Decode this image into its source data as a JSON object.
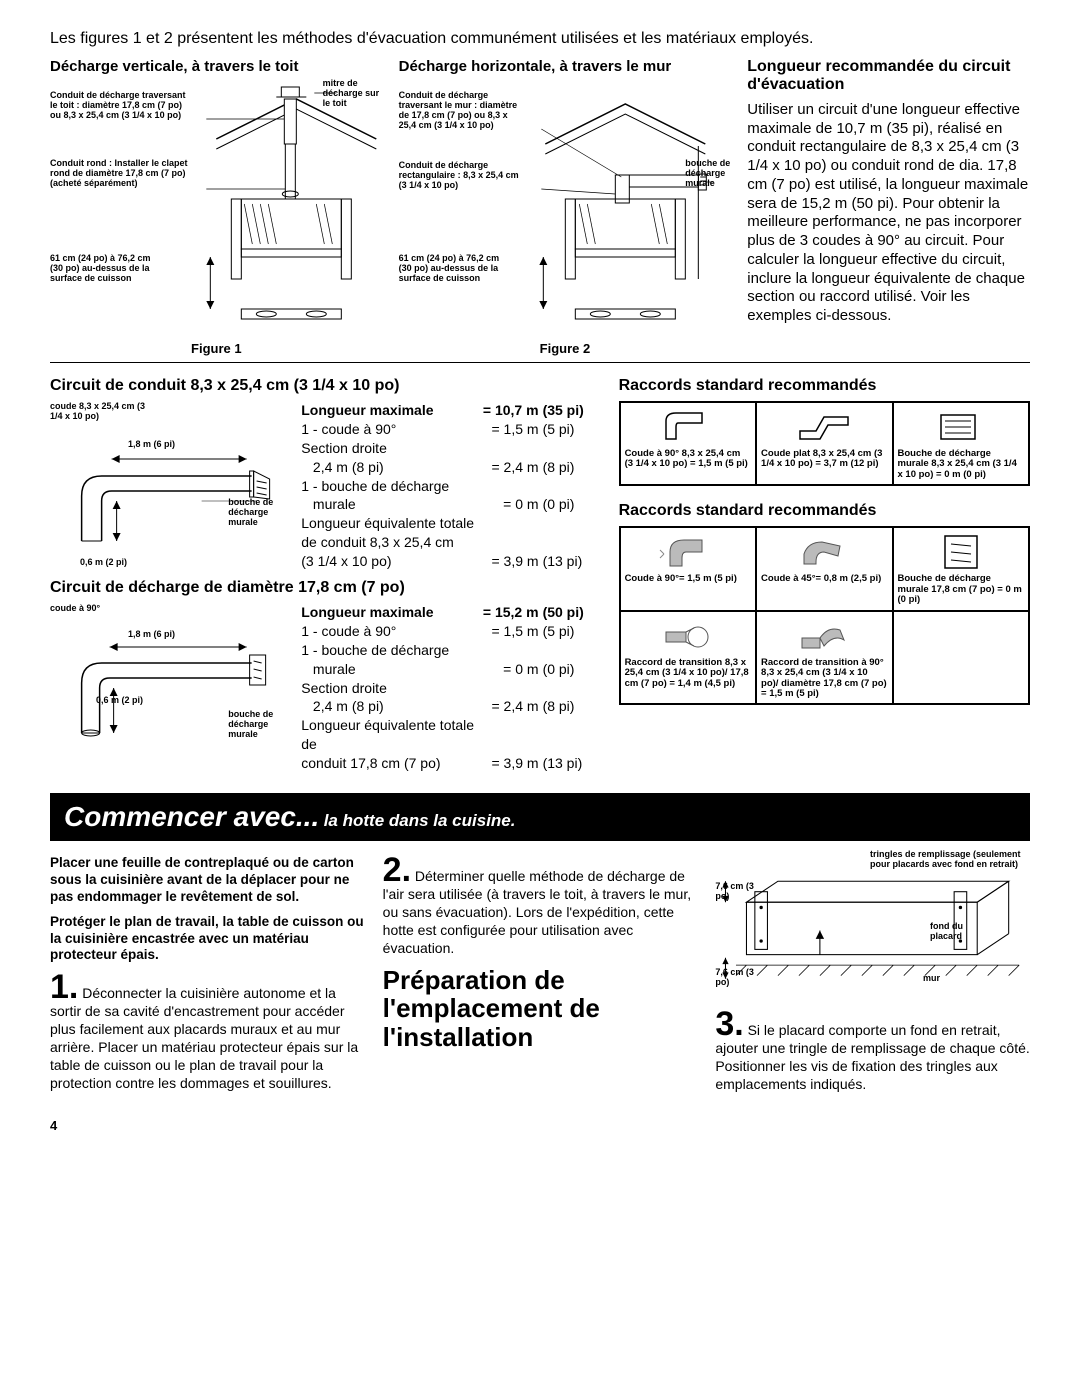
{
  "intro": "Les figures 1 et 2 présentent les méthodes d'évacuation communément utilisées et les matériaux employés.",
  "fig1": {
    "title": "Décharge verticale, à travers le toit",
    "caption": "Figure 1",
    "labels": {
      "a": "Conduit de décharge traversant le toit : diamètre 17,8 cm (7 po) ou 8,3 x 25,4 cm (3 1/4 x 10 po)",
      "b": "Conduit rond : Installer le clapet rond de diamètre 17,8 cm (7 po) (acheté séparément)",
      "c": "61 cm (24 po) à 76,2 cm (30 po) au-dessus de la surface de cuisson",
      "d": "mitre de décharge sur le toit"
    }
  },
  "fig2": {
    "title": "Décharge horizontale, à travers le mur",
    "caption": "Figure 2",
    "labels": {
      "a": "Conduit de décharge traversant le mur : diamètre de 17,8 cm (7 po) ou 8,3 x 25,4 cm (3 1/4 x 10 po)",
      "b": "Conduit de décharge rectangulaire : 8,3 x 25,4 cm (3 1/4 x 10 po)",
      "c": "61 cm (24 po) à 76,2 cm (30 po) au-dessus de la surface de cuisson",
      "d": "bouche de décharge murale"
    }
  },
  "right": {
    "h": "Longueur recommandée du circuit d'évacuation",
    "p": "Utiliser un circuit d'une longueur effective maximale de 10,7 m (35 pi), réalisé en conduit rectangulaire de 8,3 x 25,4 cm (3 1/4 x 10 po) ou conduit rond de dia. 17,8 cm (7 po) est utilisé, la longueur maximale sera de 15,2 m (50 pi). Pour obtenir la meilleure performance, ne pas incorporer plus de 3 coudes à 90° au circuit. Pour calculer la longueur effective du circuit, inclure la longueur équivalente de chaque section ou raccord utilisé. Voir les exemples ci-dessous."
  },
  "sect1": {
    "h": "Circuit de conduit 8,3 x 25,4 cm (3 1/4 x 10 po)",
    "dia_labels": {
      "elbow": "coude 8,3 x 25,4 cm (3 1/4 x 10 po)",
      "run": "1,8 m (6 pi)",
      "cap": "bouche de décharge murale",
      "rise": "0,6 m (2 pi)"
    },
    "table": {
      "hdr_l": "Longueur maximale",
      "hdr_m": "= 10,7 m",
      "hdr_r": "(35 pi)",
      "rows": [
        {
          "l": "1 - coude à 90°",
          "m": "=  1,5 m",
          "r": "(5 pi)"
        },
        {
          "l": "Section droite",
          "m": "",
          "r": ""
        },
        {
          "l": "   2,4 m (8 pi)",
          "m": "=  2,4 m",
          "r": "(8 pi)"
        },
        {
          "l": "1 - bouche de décharge",
          "m": "",
          "r": ""
        },
        {
          "l": "   murale",
          "m": "=     0 m",
          "r": "(0 pi)"
        },
        {
          "l": "Longueur équivalente totale",
          "m": "",
          "r": ""
        },
        {
          "l": "de conduit 8,3 x 25,4 cm",
          "m": "",
          "r": ""
        },
        {
          "l": "(3 1/4 x 10 po)",
          "m": "=  3,9 m",
          "r": "(13 pi)"
        }
      ]
    }
  },
  "sect2": {
    "h": "Circuit de décharge de diamètre 17,8 cm (7 po)",
    "dia_labels": {
      "elbow": "coude à 90°",
      "run": "1,8 m (6 pi)",
      "cap": "bouche de décharge murale",
      "rise": "0,6 m (2 pi)"
    },
    "table": {
      "hdr_l": "Longueur maximale",
      "hdr_m": "= 15,2 m",
      "hdr_r": "(50 pi)",
      "rows": [
        {
          "l": "1 - coude à 90°",
          "m": "=  1,5 m",
          "r": "(5 pi)"
        },
        {
          "l": "1 - bouche de décharge",
          "m": "",
          "r": ""
        },
        {
          "l": "   murale",
          "m": "=     0 m",
          "r": "(0 pi)"
        },
        {
          "l": "Section droite",
          "m": "",
          "r": ""
        },
        {
          "l": "   2,4 m (8 pi)",
          "m": "=  2,4 m",
          "r": "(8 pi)"
        },
        {
          "l": "Longueur équivalente totale de",
          "m": "",
          "r": ""
        },
        {
          "l": "conduit 17,8 cm (7 po)",
          "m": "=  3,9 m",
          "r": "(13 pi)"
        }
      ]
    }
  },
  "fittings1": {
    "h": "Raccords standard recommandés",
    "items": [
      {
        "cap": "Coude à 90° 8,3 x 25,4 cm (3 1/4 x 10 po) = 1,5 m (5 pi)"
      },
      {
        "cap": "Coude plat 8,3 x 25,4 cm (3 1/4 x 10 po) = 3,7 m (12 pi)"
      },
      {
        "cap": "Bouche de décharge murale 8,3 x 25,4 cm (3 1/4 x 10 po) = 0 m (0 pi)"
      }
    ]
  },
  "fittings2": {
    "h": "Raccords standard recommandés",
    "items": [
      {
        "cap": "Coude à 90°= 1,5 m (5 pi)"
      },
      {
        "cap": "Coude à 45°= 0,8 m (2,5 pi)"
      },
      {
        "cap": "Bouche de décharge murale 17,8 cm (7 po) = 0 m (0 pi)"
      },
      {
        "cap": "Raccord de transition 8,3 x 25,4 cm (3 1/4 x 10 po)/ 17,8 cm (7 po) = 1,4 m (4,5 pi)"
      },
      {
        "cap": "Raccord de transition à 90° 8,3 x 25,4 cm (3 1/4 x 10 po)/ diamètre 17,8 cm (7 po) = 1,5 m (5 pi)"
      }
    ]
  },
  "blackbar": {
    "big": "Commencer avec...",
    "small": "la hotte dans la cuisine."
  },
  "bottom": {
    "warn1": "Placer une feuille de contreplaqué ou de carton sous la cuisinière avant de la déplacer pour ne pas endommager le revêtement de sol.",
    "warn2": "Protéger le plan de travail, la table de cuisson ou la cuisinière encastrée avec un matériau protecteur épais.",
    "step1": "Déconnecter la cuisinière autonome et la sortir de sa cavité d'encastrement pour accéder plus facilement aux placards muraux et au mur arrière. Placer un matériau protecteur épais sur la table de cuisson ou le plan de travail pour la protection contre les dommages et souillures.",
    "step2": "Déterminer quelle méthode de décharge de l'air sera utilisée (à travers le toit, à travers le mur, ou sans évacuation). Lors de l'expédition, cette hotte est configurée pour utilisation avec évacuation.",
    "prep_title": "Préparation de l'emplacement de l'installation",
    "step3": "Si le placard comporte un fond en retrait, ajouter une tringle de remplissage de chaque côté. Positionner les vis de fixation des tringles aux emplacements indiqués.",
    "dia": {
      "filler": "tringles de remplissage (seulement pour placards avec fond en retrait)",
      "bottom": "fond du placard",
      "wall": "mur",
      "dim1": "7,6 cm (3 po)",
      "dim2": "7,6 cm (3 po)"
    }
  },
  "page": "4"
}
